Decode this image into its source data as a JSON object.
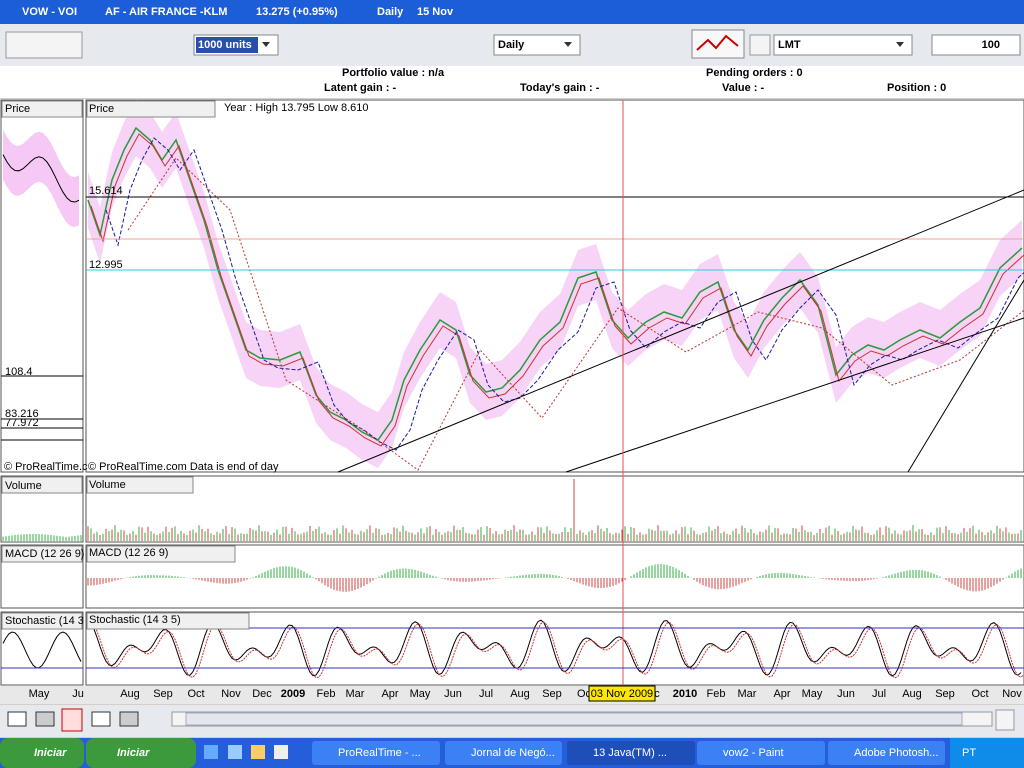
{
  "tabs": [
    "VOW - VOI",
    "AF - AIR FRANCE -KLM"
  ],
  "quote": {
    "price": "13.275 (+0.95%)",
    "period": "Daily",
    "date": "15 Nov"
  },
  "toolbar": {
    "quantity": "1000 units",
    "period": "Daily",
    "order_type": "LMT",
    "amount": "100"
  },
  "portfolio": {
    "portfolio_value": "Portfolio value : n/a",
    "pending_orders": "Pending orders : 0",
    "latent_gain": "Latent gain : -",
    "todays_gain": "Today's gain : -",
    "value": "Value : -",
    "position": "Position : 0"
  },
  "left_panel": {
    "price_title": "Price",
    "levels": [
      "108.4",
      "83.216",
      "77.972"
    ],
    "copyright": "© ProRealTime.c",
    "volume_title": "Volume",
    "macd_title": "MACD (12 26 9)",
    "stochastic_title": "Stochastic (14 3",
    "x_labels": [
      "May",
      "Ju"
    ]
  },
  "main_panel": {
    "price_title": "Price",
    "year_range": "Year : High 13.795 Low 8.610",
    "levels": [
      "15.614",
      "12.995"
    ],
    "copyright": "© ProRealTime.com  Data is end of day",
    "volume_title": "Volume",
    "macd_title": "MACD (12 26 9)",
    "stochastic_title": "Stochastic (14 3 5)",
    "x_labels": [
      "Aug",
      "Sep",
      "Oct",
      "Nov",
      "Dec",
      "2009",
      "Feb",
      "Mar",
      "Apr",
      "May",
      "Jun",
      "Jul",
      "Aug",
      "Sep",
      "Oc",
      "c",
      "2010",
      "Feb",
      "Mar",
      "Apr",
      "May",
      "Jun",
      "Jul",
      "Aug",
      "Sep",
      "Oct",
      "Nov"
    ],
    "cursor_date": "03 Nov 2009"
  },
  "taskbar": {
    "start": [
      "Iniciar",
      "Iniciar"
    ],
    "items": [
      "ProRealTime - ...",
      "Jornal de Negó...",
      "13 Java(TM) ...",
      "vow2 - Paint",
      "Adobe Photosh..."
    ],
    "language": "PT"
  }
}
